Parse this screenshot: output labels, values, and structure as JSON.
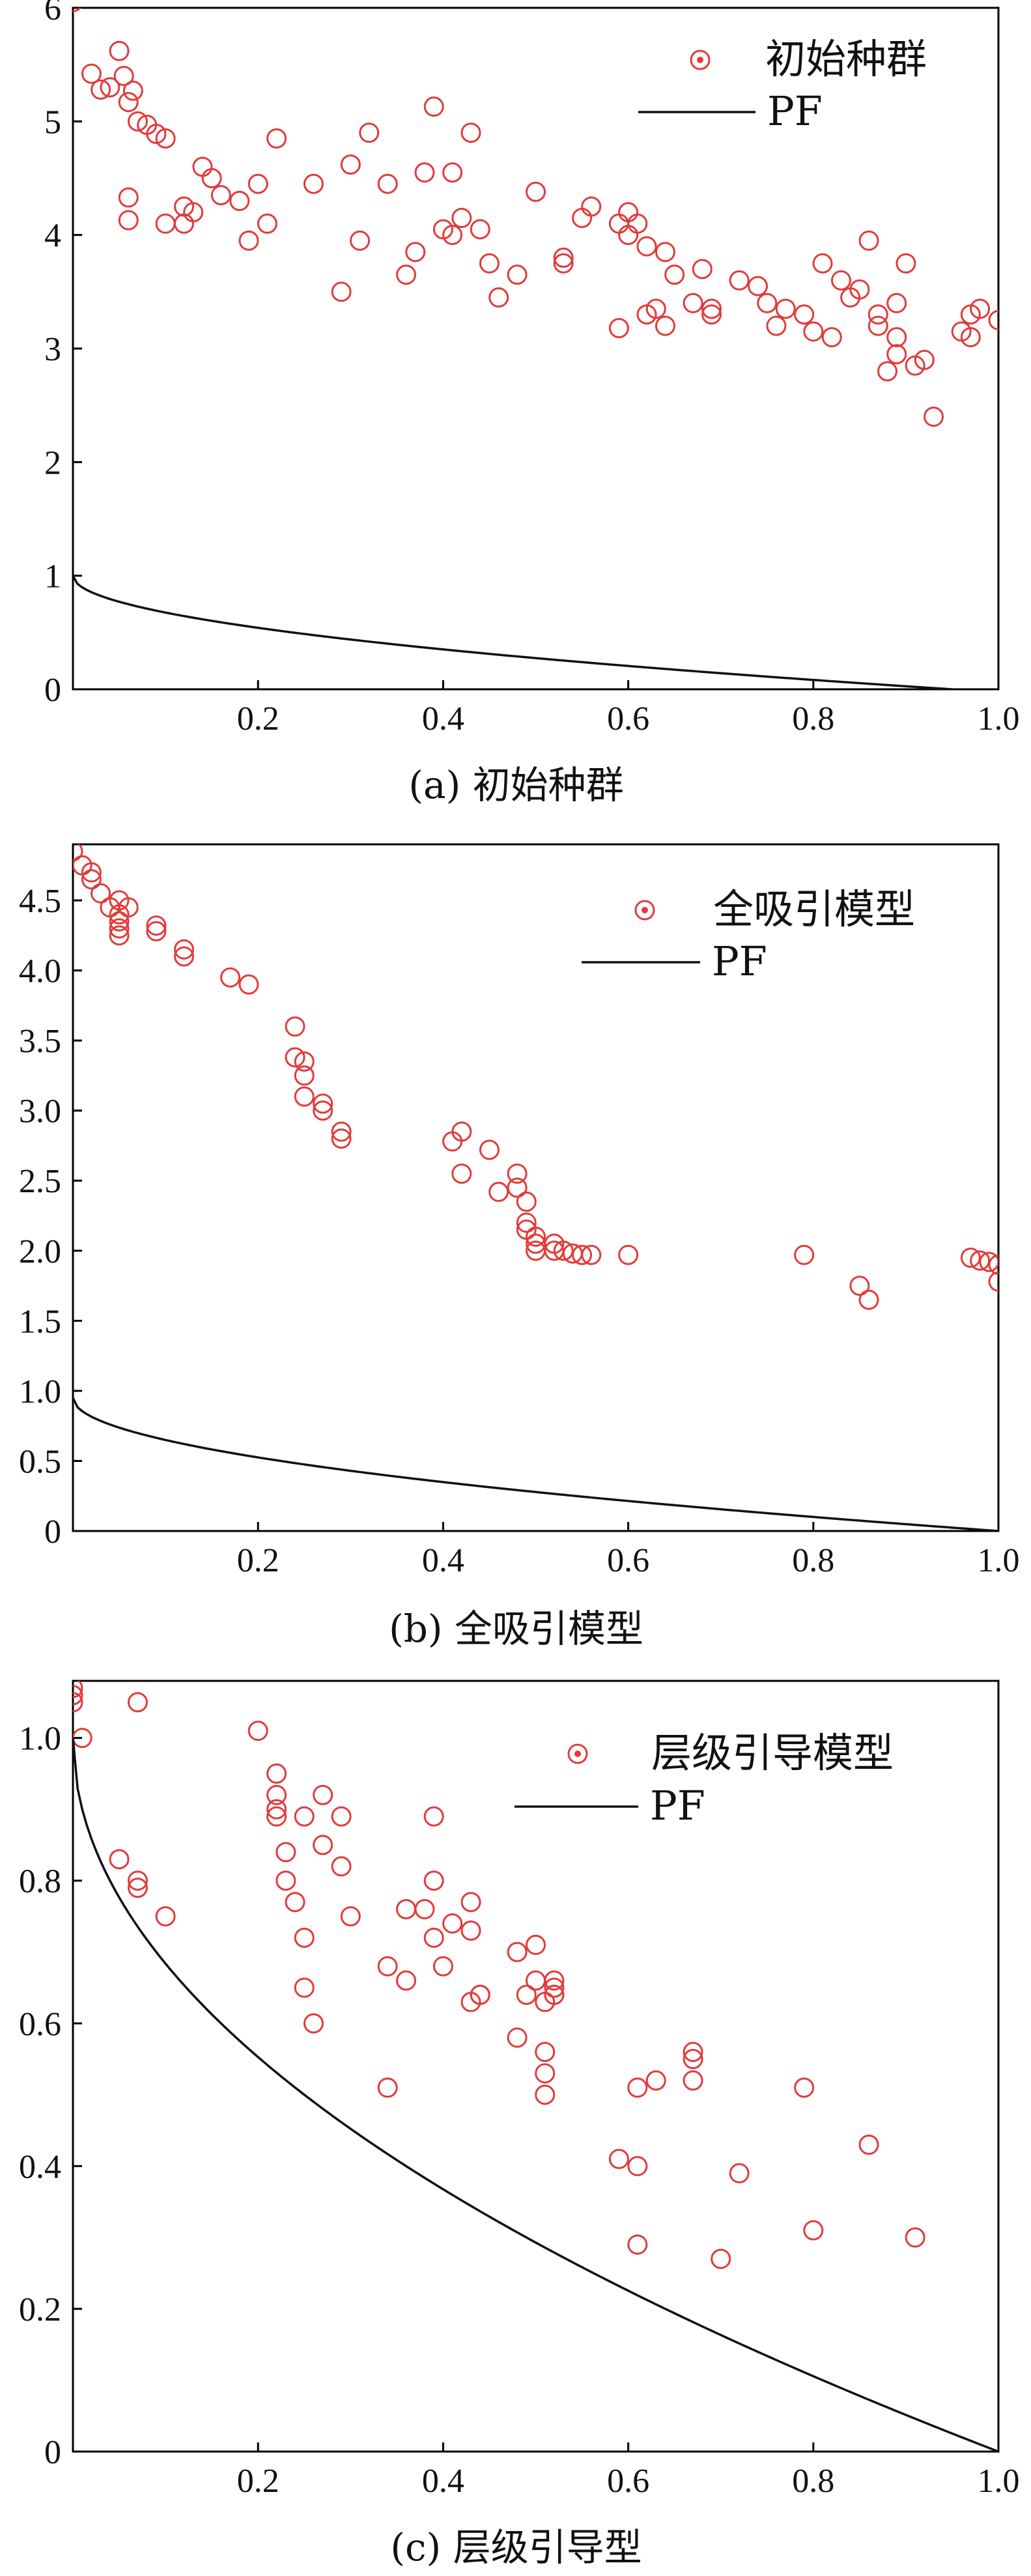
{
  "colors": {
    "marker": "#e23b3b",
    "pf": "#111111",
    "axis": "#000000"
  },
  "chart_data": [
    {
      "type": "scatter",
      "caption": "(a) 初始种群",
      "xlim": [
        0,
        1.0
      ],
      "ylim": [
        0,
        6
      ],
      "xticks": [
        "0.2",
        "0.4",
        "0.6",
        "0.8",
        "1.0"
      ],
      "xtick_values": [
        0.2,
        0.4,
        0.6,
        0.8,
        1.0
      ],
      "yticks": [
        "0",
        "1",
        "2",
        "3",
        "4",
        "5",
        "6"
      ],
      "ytick_values": [
        0,
        1,
        2,
        3,
        4,
        5,
        6
      ],
      "legend": {
        "marker_label": "初始种群",
        "line_label": "PF",
        "position": "top-right"
      },
      "series": [
        {
          "name": "初始种群",
          "kind": "points",
          "x": [
            0.0,
            0.02,
            0.03,
            0.04,
            0.05,
            0.055,
            0.06,
            0.065,
            0.07,
            0.08,
            0.09,
            0.1,
            0.06,
            0.06,
            0.1,
            0.12,
            0.12,
            0.13,
            0.14,
            0.15,
            0.16,
            0.18,
            0.19,
            0.2,
            0.21,
            0.22,
            0.26,
            0.29,
            0.3,
            0.31,
            0.32,
            0.34,
            0.36,
            0.37,
            0.38,
            0.39,
            0.4,
            0.41,
            0.41,
            0.42,
            0.43,
            0.44,
            0.45,
            0.46,
            0.48,
            0.5,
            0.53,
            0.53,
            0.55,
            0.56,
            0.59,
            0.59,
            0.6,
            0.6,
            0.61,
            0.62,
            0.62,
            0.63,
            0.64,
            0.64,
            0.65,
            0.67,
            0.68,
            0.69,
            0.69,
            0.72,
            0.74,
            0.75,
            0.76,
            0.77,
            0.79,
            0.8,
            0.81,
            0.82,
            0.83,
            0.84,
            0.85,
            0.86,
            0.87,
            0.87,
            0.88,
            0.89,
            0.89,
            0.89,
            0.9,
            0.91,
            0.92,
            0.93,
            0.96,
            0.97,
            0.97,
            0.98,
            1.0
          ],
          "y": [
            6.05,
            5.42,
            5.28,
            5.3,
            5.62,
            5.4,
            5.17,
            5.27,
            5.0,
            4.97,
            4.89,
            4.85,
            4.33,
            4.13,
            4.1,
            4.1,
            4.25,
            4.2,
            4.6,
            4.5,
            4.35,
            4.3,
            3.95,
            4.45,
            4.1,
            4.85,
            4.45,
            3.5,
            4.62,
            3.95,
            4.9,
            4.45,
            3.65,
            3.85,
            4.55,
            5.13,
            4.05,
            4.55,
            4.0,
            4.15,
            4.9,
            4.05,
            3.75,
            3.45,
            3.65,
            4.38,
            3.8,
            3.75,
            4.15,
            4.25,
            4.1,
            3.18,
            4.2,
            4.0,
            4.1,
            3.3,
            3.9,
            3.35,
            3.2,
            3.85,
            3.65,
            3.4,
            3.7,
            3.35,
            3.3,
            3.6,
            3.55,
            3.4,
            3.2,
            3.35,
            3.3,
            3.15,
            3.75,
            3.1,
            3.6,
            3.45,
            3.52,
            3.95,
            3.3,
            3.2,
            2.8,
            3.4,
            3.1,
            2.95,
            3.75,
            2.85,
            2.9,
            2.4,
            3.15,
            3.3,
            3.1,
            3.35,
            3.25
          ]
        },
        {
          "name": "PF",
          "kind": "line",
          "x0": 0,
          "y0": 1.0,
          "x_end": 0.95,
          "exponent": 0.5
        }
      ]
    },
    {
      "type": "scatter",
      "caption": "(b) 全吸引模型",
      "xlim": [
        0,
        1.0
      ],
      "ylim": [
        0,
        4.9
      ],
      "xticks": [
        "0.2",
        "0.4",
        "0.6",
        "0.8",
        "1.0"
      ],
      "xtick_values": [
        0.2,
        0.4,
        0.6,
        0.8,
        1.0
      ],
      "yticks": [
        "0",
        "0.5",
        "1.0",
        "1.5",
        "2.0",
        "2.5",
        "3.0",
        "3.5",
        "4.0",
        "4.5"
      ],
      "ytick_values": [
        0,
        0.5,
        1.0,
        1.5,
        2.0,
        2.5,
        3.0,
        3.5,
        4.0,
        4.5
      ],
      "legend": {
        "marker_label": "全吸引模型",
        "line_label": "PF",
        "position": "top-right"
      },
      "series": [
        {
          "name": "全吸引模型",
          "kind": "points",
          "x": [
            0.0,
            0.01,
            0.02,
            0.02,
            0.03,
            0.04,
            0.05,
            0.05,
            0.05,
            0.05,
            0.05,
            0.06,
            0.09,
            0.09,
            0.12,
            0.12,
            0.17,
            0.19,
            0.24,
            0.24,
            0.25,
            0.25,
            0.25,
            0.27,
            0.27,
            0.29,
            0.29,
            0.41,
            0.42,
            0.42,
            0.45,
            0.46,
            0.48,
            0.48,
            0.49,
            0.49,
            0.49,
            0.5,
            0.5,
            0.5,
            0.52,
            0.52,
            0.53,
            0.54,
            0.55,
            0.56,
            0.6,
            0.79,
            0.85,
            0.86,
            0.97,
            0.98,
            0.99,
            1.0,
            1.0
          ],
          "y": [
            4.85,
            4.75,
            4.7,
            4.65,
            4.55,
            4.45,
            4.5,
            4.4,
            4.35,
            4.3,
            4.25,
            4.45,
            4.32,
            4.28,
            4.15,
            4.1,
            3.95,
            3.9,
            3.6,
            3.38,
            3.35,
            3.25,
            3.1,
            3.05,
            3.0,
            2.85,
            2.8,
            2.78,
            2.85,
            2.55,
            2.72,
            2.42,
            2.55,
            2.45,
            2.35,
            2.2,
            2.15,
            2.1,
            2.05,
            2.0,
            2.05,
            2.0,
            2.0,
            1.98,
            1.97,
            1.97,
            1.97,
            1.97,
            1.75,
            1.65,
            1.95,
            1.93,
            1.92,
            1.9,
            1.78
          ]
        },
        {
          "name": "PF",
          "kind": "line",
          "x0": 0,
          "y0": 0.95,
          "x_end": 1.0,
          "exponent": 0.5
        }
      ]
    },
    {
      "type": "scatter",
      "caption": "(c) 层级引导型",
      "xlim": [
        0,
        1.0
      ],
      "ylim": [
        0,
        1.08
      ],
      "xticks": [
        "0.2",
        "0.4",
        "0.6",
        "0.8",
        "1.0"
      ],
      "xtick_values": [
        0.2,
        0.4,
        0.6,
        0.8,
        1.0
      ],
      "yticks": [
        "0",
        "0.2",
        "0.4",
        "0.6",
        "0.8",
        "1.0"
      ],
      "ytick_values": [
        0,
        0.2,
        0.4,
        0.6,
        0.8,
        1.0
      ],
      "legend": {
        "marker_label": "层级引导模型",
        "line_label": "PF",
        "position": "top-right"
      },
      "series": [
        {
          "name": "层级引导模型",
          "kind": "points",
          "x": [
            0.0,
            0.0,
            0.0,
            0.01,
            0.07,
            0.05,
            0.07,
            0.07,
            0.1,
            0.2,
            0.22,
            0.22,
            0.22,
            0.22,
            0.23,
            0.23,
            0.24,
            0.25,
            0.25,
            0.25,
            0.26,
            0.27,
            0.27,
            0.29,
            0.29,
            0.3,
            0.34,
            0.34,
            0.36,
            0.36,
            0.38,
            0.39,
            0.39,
            0.39,
            0.4,
            0.41,
            0.43,
            0.43,
            0.43,
            0.44,
            0.44,
            0.48,
            0.48,
            0.49,
            0.5,
            0.5,
            0.51,
            0.51,
            0.51,
            0.51,
            0.52,
            0.52,
            0.52,
            0.52,
            0.59,
            0.61,
            0.61,
            0.61,
            0.63,
            0.67,
            0.67,
            0.67,
            0.7,
            0.72,
            0.79,
            0.8,
            0.86,
            0.91
          ],
          "y": [
            1.07,
            1.06,
            1.05,
            1.0,
            1.05,
            0.83,
            0.8,
            0.79,
            0.75,
            1.01,
            0.95,
            0.92,
            0.9,
            0.89,
            0.84,
            0.8,
            0.77,
            0.89,
            0.72,
            0.65,
            0.6,
            0.85,
            0.92,
            0.89,
            0.82,
            0.75,
            0.68,
            0.51,
            0.66,
            0.76,
            0.76,
            0.72,
            0.8,
            0.89,
            0.68,
            0.74,
            0.77,
            0.73,
            0.63,
            0.64,
            0.64,
            0.7,
            0.58,
            0.64,
            0.71,
            0.66,
            0.63,
            0.56,
            0.53,
            0.5,
            0.66,
            0.65,
            0.64,
            0.64,
            0.41,
            0.4,
            0.51,
            0.29,
            0.52,
            0.55,
            0.56,
            0.52,
            0.27,
            0.39,
            0.51,
            0.31,
            0.43,
            0.3
          ]
        },
        {
          "name": "PF",
          "kind": "line",
          "x0": 0,
          "y0": 1.0,
          "x_end": 1.0,
          "exponent": 0.5
        }
      ]
    }
  ]
}
